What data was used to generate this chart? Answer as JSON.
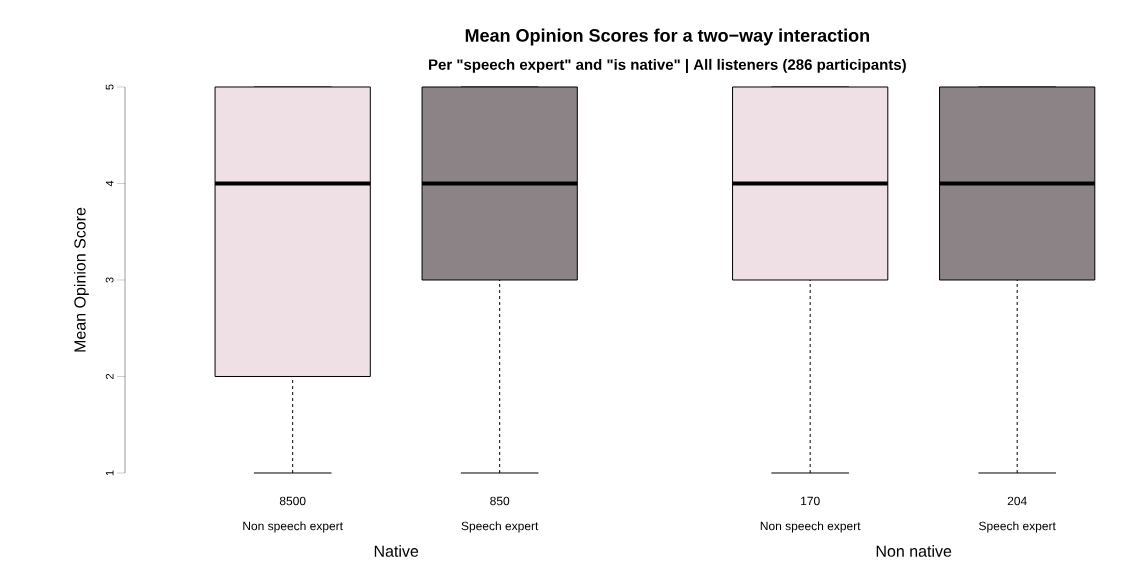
{
  "chart_data": {
    "type": "box",
    "title": "Mean Opinion Scores for a two−way interaction",
    "subtitle": "Per \"speech expert\" and \"is native\" | All listeners (286 participants)",
    "ylabel": "Mean Opinion Score",
    "categories": [
      "Non speech expert",
      "Speech expert",
      "Non speech expert",
      "Speech expert"
    ],
    "colors": [
      "#eee0e4",
      "#8c8386",
      "#eee0e4",
      "#8c8386"
    ],
    "boxes": [
      {
        "low": 1,
        "q1": 2,
        "median": 4,
        "q3": 5,
        "high": 5
      },
      {
        "low": 1,
        "q1": 3,
        "median": 4,
        "q3": 5,
        "high": 5
      },
      {
        "low": 1,
        "q1": 3,
        "median": 4,
        "q3": 5,
        "high": 5
      },
      {
        "low": 1,
        "q1": 3,
        "median": 4,
        "q3": 5,
        "high": 5
      }
    ],
    "ylim": [
      1,
      5
    ],
    "yticks": [
      1,
      2,
      3,
      4,
      5
    ],
    "annotations": [
      "8500",
      "850",
      "170",
      "204",
      "Native",
      "Non native"
    ]
  }
}
